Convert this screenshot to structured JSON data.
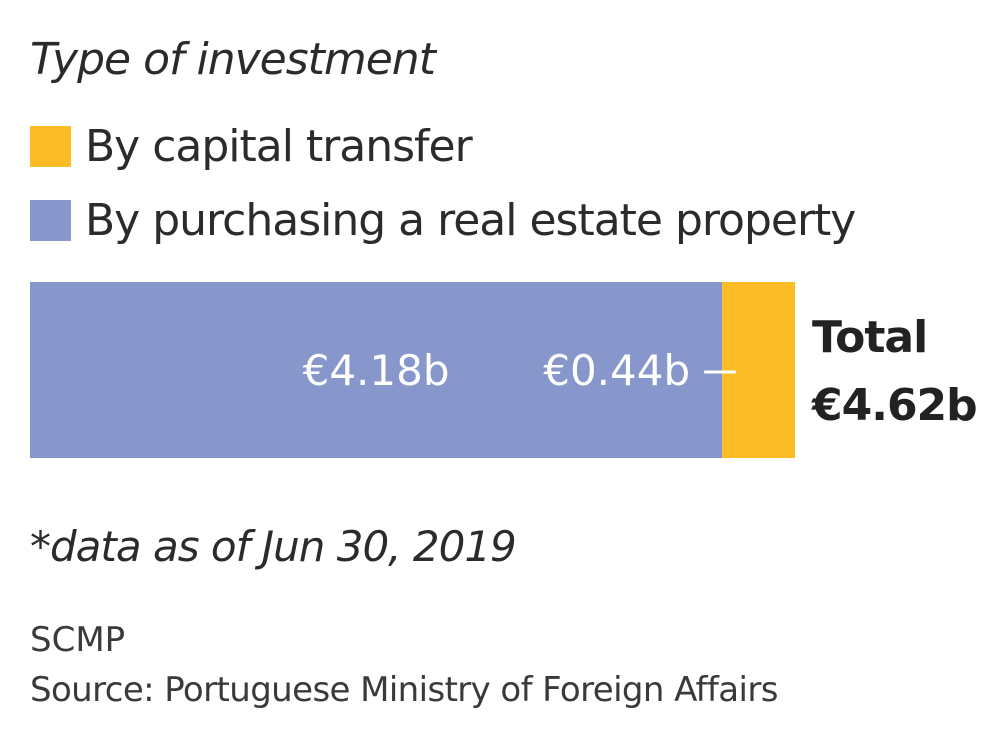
{
  "chart_data": {
    "type": "bar",
    "orientation": "horizontal-stacked",
    "title": "Type of investment",
    "categories": [
      ""
    ],
    "series": [
      {
        "name": "By purchasing a real estate property",
        "values": [
          4.18
        ],
        "label": "€4.18b",
        "color": "#8796cb"
      },
      {
        "name": "By capital transfer",
        "values": [
          0.44
        ],
        "label": "€0.44b",
        "color": "#fbbc25"
      }
    ],
    "total": {
      "label": "Total",
      "value": 4.62,
      "value_label": "€4.62b"
    },
    "unit": "€ billion",
    "legend_position": "top",
    "grid": false
  },
  "legend": [
    {
      "label": "By capital transfer",
      "color": "#fbbc25"
    },
    {
      "label": "By purchasing a real estate property",
      "color": "#8796cb"
    }
  ],
  "footnote": "*data as of Jun 30, 2019",
  "publisher": "SCMP",
  "source": "Source: Portuguese Ministry of Foreign Affairs"
}
